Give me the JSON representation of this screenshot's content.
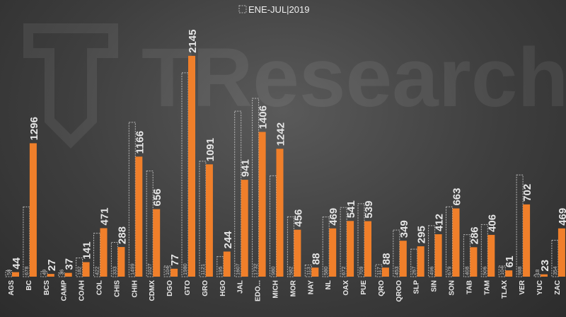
{
  "chart_data": {
    "type": "bar",
    "title": "",
    "xlabel": "",
    "ylabel": "",
    "ylim": [
      0,
      2300
    ],
    "legend_position": "top-center",
    "categories": [
      "AGS",
      "BC",
      "BCS",
      "CAMP",
      "COAH",
      "COL",
      "CHIS",
      "CHIH",
      "CDMX",
      "DGO",
      "GTO",
      "GRO",
      "HGO",
      "JAL",
      "EDO...",
      "MICH",
      "MOR",
      "NAY",
      "NL",
      "OAX",
      "PUE",
      "QRO",
      "QROO",
      "SLP",
      "SIN",
      "SON",
      "TAB",
      "TAM",
      "TLAX",
      "VER",
      "YUC",
      "ZAC"
    ],
    "series": [
      {
        "name": "",
        "style": "dashed-outline",
        "values": [
          58,
          678,
          49,
          36,
          182,
          422,
          333,
          1499,
          1027,
          104,
          1980,
          1121,
          195,
          1607,
          1732,
          980,
          582,
          113,
          580,
          672,
          709,
          117,
          453,
          267,
          496,
          679,
          408,
          506,
          104,
          988,
          18,
          354
        ]
      },
      {
        "name": "ENE-JUL|2019",
        "color": "#f07f2a",
        "values": [
          44,
          1296,
          27,
          37,
          141,
          471,
          288,
          1166,
          656,
          77,
          2145,
          1091,
          244,
          941,
          1406,
          1242,
          456,
          88,
          469,
          541,
          539,
          88,
          349,
          295,
          412,
          663,
          286,
          406,
          61,
          702,
          23,
          469
        ]
      }
    ]
  },
  "watermark": {
    "text": "TResearch"
  },
  "colors": {
    "bar": "#f07f2a",
    "outline": "#b9b9b9",
    "background": "#444444"
  }
}
